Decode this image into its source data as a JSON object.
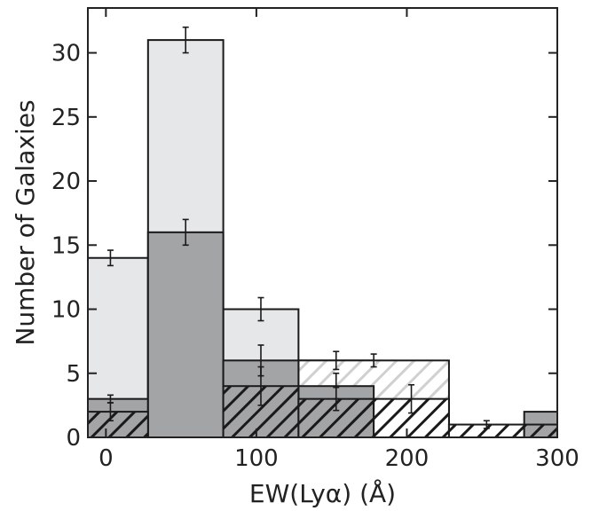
{
  "chart_data": {
    "type": "bar",
    "subtype": "stacked-histogram",
    "title": "",
    "xlabel": "EW(Lyα) (Å)",
    "ylabel": "Number of Galaxies",
    "xlim": [
      -12,
      300
    ],
    "ylim": [
      0,
      33.5
    ],
    "xticks": [
      0,
      100,
      200,
      300
    ],
    "yticks": [
      0,
      5,
      10,
      15,
      20,
      25,
      30
    ],
    "bin_edges": [
      -22,
      28,
      78,
      128,
      178,
      228,
      278,
      328
    ],
    "series": [
      {
        "fill": "light-gray",
        "bins": [
          {
            "x0": -22,
            "x1": 28,
            "value": 14,
            "err": 0.6
          },
          {
            "x0": 28,
            "x1": 78,
            "value": 31,
            "err": 1.0
          },
          {
            "x0": 78,
            "x1": 128,
            "value": 10,
            "err": 0.9
          },
          {
            "x0": 128,
            "x1": 178,
            "value": 6,
            "err": 0.7
          }
        ]
      },
      {
        "fill": "light-hatched",
        "bins": [
          {
            "x0": 128,
            "x1": 228,
            "value": 6,
            "err": 0.5
          }
        ]
      },
      {
        "fill": "dark-gray",
        "bins": [
          {
            "x0": -22,
            "x1": 28,
            "value": 3,
            "err": 0.3
          },
          {
            "x0": 28,
            "x1": 78,
            "value": 16,
            "err": 1.0
          },
          {
            "x0": 78,
            "x1": 128,
            "value": 6,
            "err": 1.2
          },
          {
            "x0": 128,
            "x1": 178,
            "value": 4,
            "err": 1.0
          },
          {
            "x0": 278,
            "x1": 328,
            "value": 2,
            "err": 0.8
          }
        ]
      },
      {
        "fill": "dark-hatched",
        "bins": [
          {
            "x0": -22,
            "x1": 28,
            "value": 2,
            "err": 0.7
          },
          {
            "x0": 78,
            "x1": 128,
            "value": 4,
            "err": 1.5
          },
          {
            "x0": 128,
            "x1": 178,
            "value": 3,
            "err": 0.9
          },
          {
            "x0": 178,
            "x1": 228,
            "value": 3,
            "err": 1.1
          },
          {
            "x0": 228,
            "x1": 278,
            "value": 1,
            "err": 0.3
          },
          {
            "x0": 278,
            "x1": 328,
            "value": 1,
            "err": 0.3
          }
        ]
      }
    ],
    "colors": {
      "light_gray": "#e6e7e8",
      "dark_gray": "#a3a4a6",
      "hatch_dark": "#1a1a1a",
      "hatch_light": "#d0d0d0",
      "edge": "#1a1a1a"
    },
    "grid": false,
    "legend": "none"
  }
}
